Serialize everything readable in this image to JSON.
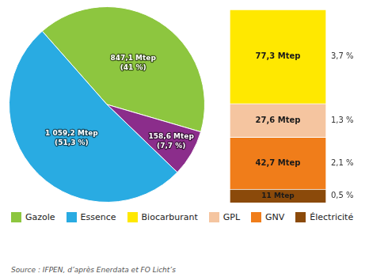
{
  "chart_data": [
    {
      "type": "pie",
      "categories": [
        "Gazole",
        null,
        "Essence"
      ],
      "values": [
        847.1,
        158.6,
        1059.2
      ],
      "value_labels": [
        "847,1 Mtep\n(41 %)",
        "158,6 Mtep\n(7,7 %)",
        "1 059,2 Mtep\n(51,3 %)"
      ],
      "colors": [
        "#8DC63F",
        "#8B2D8B",
        "#29ABE2"
      ],
      "data_labels": true,
      "legend": "bottom",
      "annotations": [
        "Source : IFPEN, d’après Enerdata et FO Licht’s"
      ]
    },
    {
      "type": "bar",
      "stacked": true,
      "categories": [
        null
      ],
      "series": [
        {
          "name": "Biocarburant",
          "color": "#FFE800",
          "values": [
            77.3
          ],
          "value_labels": [
            "77,3 Mtep"
          ],
          "shares": [
            3.7
          ],
          "share_labels": [
            "3,7 %"
          ]
        },
        {
          "name": "GPL",
          "color": "#F5C5A0",
          "values": [
            27.6
          ],
          "value_labels": [
            "27,6 Mtep"
          ],
          "shares": [
            1.3
          ],
          "share_labels": [
            "1,3 %"
          ]
        },
        {
          "name": "GNV",
          "color": "#F07D1A",
          "values": [
            42.7
          ],
          "value_labels": [
            "42,7 Mtep"
          ],
          "shares": [
            2.1
          ],
          "share_labels": [
            "2,1 %"
          ]
        },
        {
          "name": "Électricité",
          "color": "#8B4A0A",
          "values": [
            11.0
          ],
          "value_labels": [
            "11 Mtep"
          ],
          "shares": [
            0.5
          ],
          "share_labels": [
            "0,5 %"
          ]
        }
      ],
      "ylim": [
        0,
        158.6
      ],
      "tick_labels": false,
      "grid": false,
      "data_labels": true
    }
  ]
}
